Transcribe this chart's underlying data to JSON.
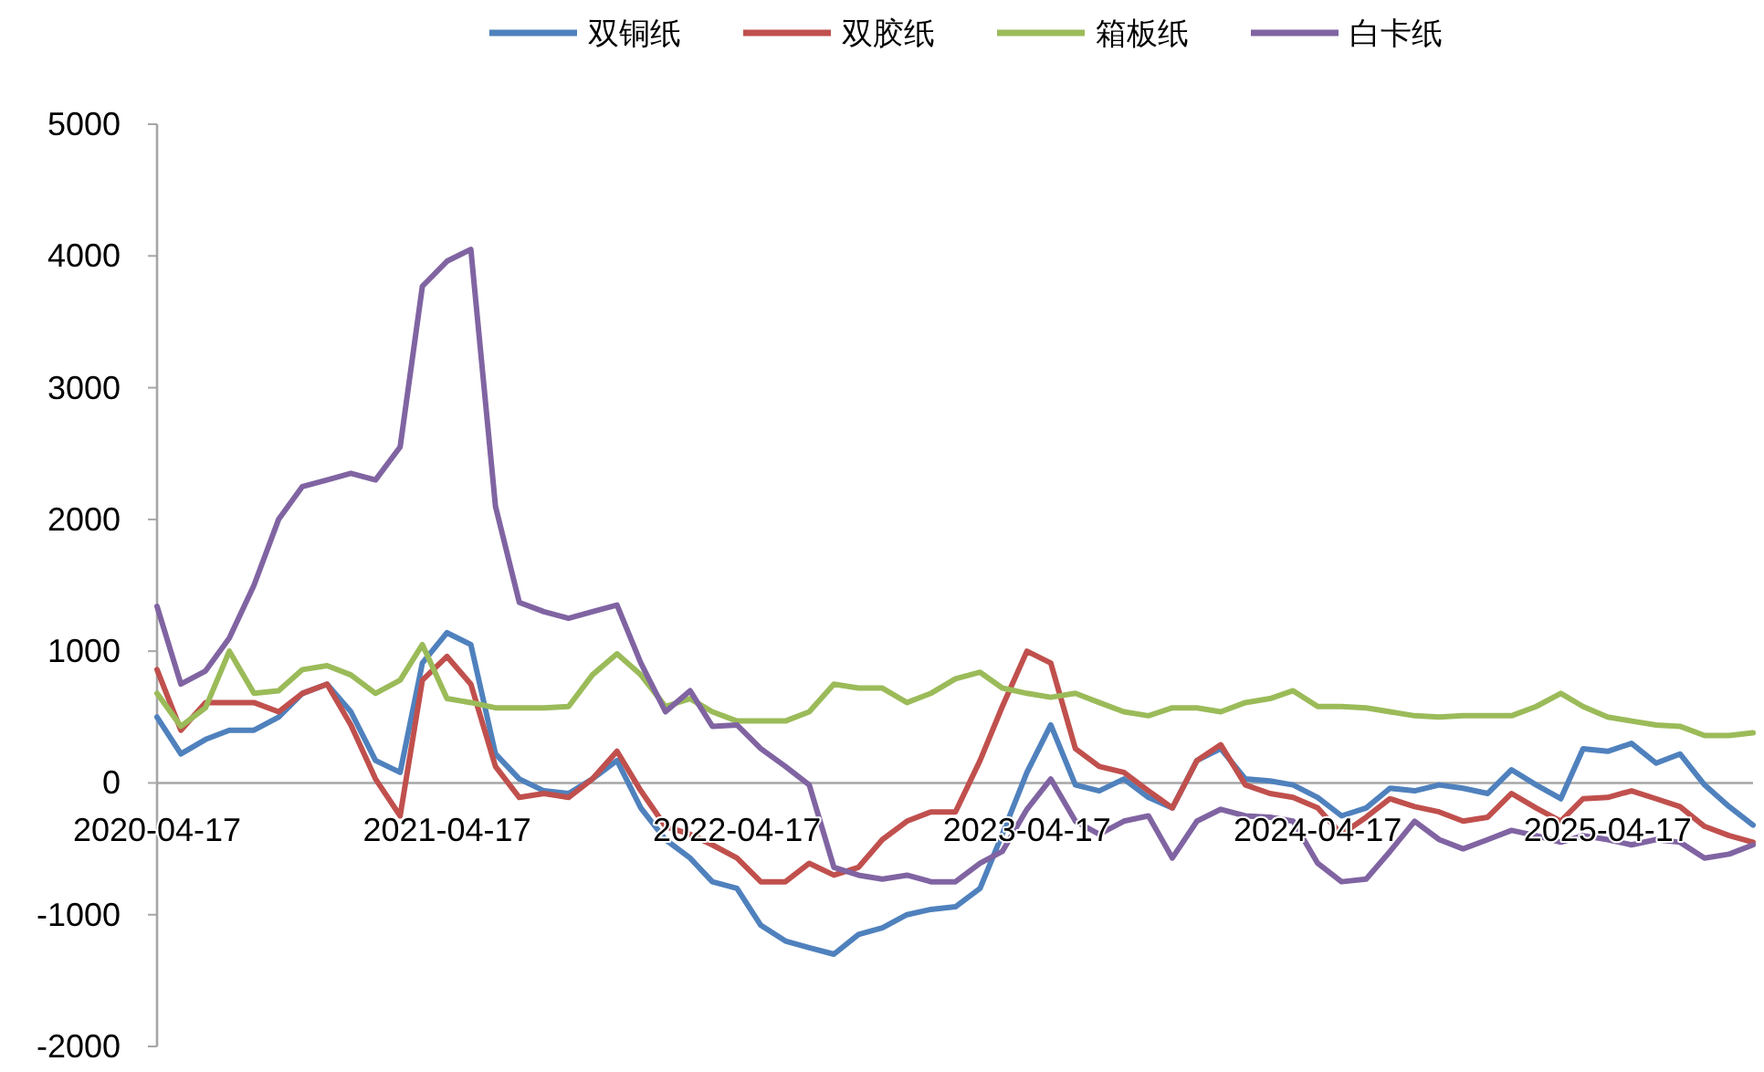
{
  "chart_data": {
    "type": "line",
    "legend": "top",
    "x": [
      "2020-04-17",
      "2020-05-17",
      "2020-06-17",
      "2020-07-17",
      "2020-08-17",
      "2020-09-17",
      "2020-10-17",
      "2020-11-17",
      "2020-12-17",
      "2021-01-17",
      "2021-02-17",
      "2021-03-17",
      "2021-04-17",
      "2021-05-17",
      "2021-06-17",
      "2021-07-17",
      "2021-08-17",
      "2021-09-17",
      "2021-10-17",
      "2021-11-17",
      "2021-12-17",
      "2022-01-17",
      "2022-02-17",
      "2022-03-17",
      "2022-04-17",
      "2022-05-17",
      "2022-06-17",
      "2022-07-17",
      "2022-08-17",
      "2022-09-17",
      "2022-10-17",
      "2022-11-17",
      "2022-12-17",
      "2023-01-17",
      "2023-02-17",
      "2023-03-17",
      "2023-04-17",
      "2023-05-17",
      "2023-06-17",
      "2023-07-17",
      "2023-08-17",
      "2023-09-17",
      "2023-10-17",
      "2023-11-17",
      "2023-12-17",
      "2024-01-17",
      "2024-02-17",
      "2024-03-17",
      "2024-04-17",
      "2024-05-17",
      "2024-06-17",
      "2024-07-17",
      "2024-08-17",
      "2024-09-17",
      "2024-10-17",
      "2024-11-17",
      "2024-12-17",
      "2025-01-17",
      "2025-02-17",
      "2025-03-17",
      "2025-04-17",
      "2025-05-17",
      "2025-06-17",
      "2025-07-17",
      "2025-08-17",
      "2025-09-17",
      "2025-10-17"
    ],
    "xlim": [
      "2020-04-17",
      "2025-10-17"
    ],
    "xticks": [
      "2020-04-17",
      "2021-04-17",
      "2022-04-17",
      "2023-04-17",
      "2024-04-17",
      "2025-04-17"
    ],
    "ylim": [
      -2000,
      5000
    ],
    "yticks": [
      -2000,
      -1000,
      0,
      1000,
      2000,
      3000,
      4000,
      5000
    ],
    "series": [
      {
        "name": "双铜纸",
        "color": "#4f81bd",
        "values": [
          500,
          220,
          330,
          400,
          400,
          500,
          680,
          750,
          540,
          170,
          80,
          910,
          1140,
          1050,
          220,
          30,
          -60,
          -80,
          30,
          170,
          -190,
          -430,
          -570,
          -750,
          -800,
          -1080,
          -1200,
          -1250,
          -1300,
          -1150,
          -1100,
          -1000,
          -960,
          -940,
          -800,
          -390,
          80,
          440,
          -15,
          -60,
          30,
          -110,
          -190,
          170,
          260,
          30,
          15,
          -15,
          -110,
          -250,
          -190,
          -40,
          -60,
          -15,
          -40,
          -80,
          100,
          -15,
          -120,
          260,
          240,
          300,
          150,
          220,
          -15,
          -180,
          -320
        ]
      },
      {
        "name": "双胶纸",
        "color": "#c0504d",
        "values": [
          860,
          400,
          610,
          610,
          610,
          540,
          680,
          750,
          440,
          30,
          -250,
          780,
          960,
          750,
          125,
          -110,
          -80,
          -110,
          30,
          240,
          -60,
          -330,
          -390,
          -470,
          -570,
          -750,
          -750,
          -610,
          -700,
          -640,
          -430,
          -290,
          -220,
          -220,
          170,
          580,
          1000,
          910,
          260,
          125,
          80,
          -60,
          -190,
          170,
          290,
          -15,
          -80,
          -110,
          -190,
          -390,
          -260,
          -120,
          -180,
          -220,
          -290,
          -260,
          -80,
          -190,
          -290,
          -120,
          -110,
          -60,
          -120,
          -180,
          -330,
          -400,
          -450
        ]
      },
      {
        "name": "箱板纸",
        "color": "#9bbb59",
        "values": [
          680,
          430,
          570,
          1000,
          680,
          700,
          860,
          890,
          820,
          680,
          780,
          1050,
          640,
          610,
          570,
          570,
          570,
          580,
          820,
          980,
          820,
          580,
          640,
          540,
          470,
          470,
          470,
          540,
          750,
          720,
          720,
          610,
          680,
          790,
          840,
          720,
          680,
          650,
          680,
          610,
          540,
          510,
          570,
          570,
          540,
          610,
          640,
          700,
          580,
          580,
          570,
          540,
          510,
          500,
          510,
          510,
          510,
          580,
          680,
          580,
          500,
          470,
          440,
          430,
          360,
          360,
          380
        ]
      },
      {
        "name": "白卡纸",
        "color": "#8064a2",
        "values": [
          1340,
          750,
          850,
          1100,
          1500,
          2000,
          2250,
          2300,
          2350,
          2300,
          2550,
          3770,
          3960,
          4050,
          2100,
          1370,
          1300,
          1250,
          1300,
          1350,
          910,
          540,
          700,
          430,
          440,
          260,
          125,
          -15,
          -640,
          -700,
          -730,
          -700,
          -750,
          -750,
          -610,
          -520,
          -200,
          30,
          -290,
          -390,
          -290,
          -250,
          -570,
          -290,
          -200,
          -250,
          -260,
          -290,
          -610,
          -750,
          -730,
          -520,
          -290,
          -430,
          -500,
          -430,
          -360,
          -400,
          -450,
          -400,
          -430,
          -470,
          -430,
          -450,
          -570,
          -540,
          -470
        ]
      }
    ]
  }
}
